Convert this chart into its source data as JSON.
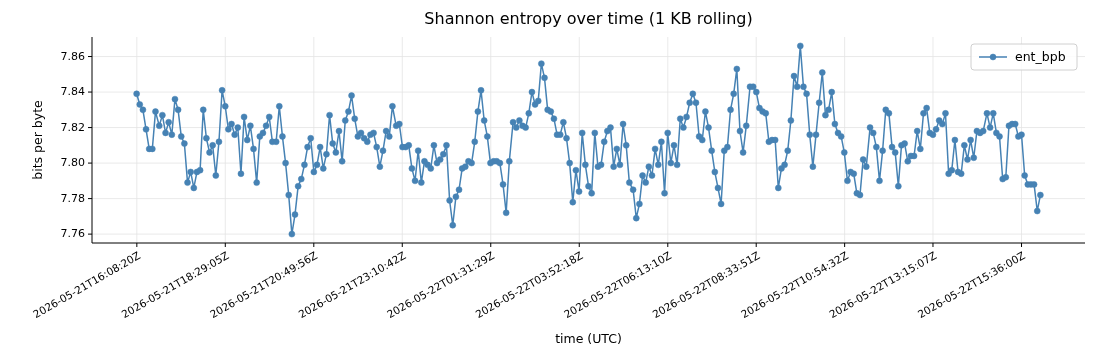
{
  "chart_data": {
    "type": "line",
    "title": "Shannon entropy over time (1 KB rolling)",
    "xlabel": "time (UTC)",
    "ylabel": "bits per byte",
    "x": [
      "2026-05-21T16:08",
      "2026-05-21T16:13",
      "2026-05-21T16:18",
      "2026-05-21T16:23",
      "2026-05-21T16:28",
      "2026-05-21T16:33",
      "2026-05-21T16:38",
      "2026-05-21T16:44",
      "2026-05-21T16:49",
      "2026-05-21T16:54",
      "2026-05-21T16:59",
      "2026-05-21T17:04",
      "2026-05-21T17:09",
      "2026-05-21T17:14",
      "2026-05-21T17:19",
      "2026-05-21T17:24",
      "2026-05-21T17:29",
      "2026-05-21T17:34",
      "2026-05-21T17:39",
      "2026-05-21T17:44",
      "2026-05-21T17:49",
      "2026-05-21T17:54",
      "2026-05-21T17:59",
      "2026-05-21T18:04",
      "2026-05-21T18:09",
      "2026-05-21T18:14",
      "2026-05-21T18:19",
      "2026-05-21T18:24",
      "2026-05-21T18:29",
      "2026-05-21T18:34",
      "2026-05-21T18:39",
      "2026-05-21T18:44",
      "2026-05-21T18:49",
      "2026-05-21T18:54",
      "2026-05-21T18:59",
      "2026-05-21T19:04",
      "2026-05-21T19:09",
      "2026-05-21T19:14",
      "2026-05-21T19:19",
      "2026-05-21T19:24",
      "2026-05-21T19:29",
      "2026-05-21T19:34",
      "2026-05-21T19:39",
      "2026-05-21T19:44",
      "2026-05-21T19:50",
      "2026-05-21T19:55",
      "2026-05-21T20:00",
      "2026-05-21T20:05",
      "2026-05-21T20:10",
      "2026-05-21T20:15",
      "2026-05-21T20:20",
      "2026-05-21T20:25",
      "2026-05-21T20:30",
      "2026-05-21T20:35",
      "2026-05-21T20:40",
      "2026-05-21T20:45",
      "2026-05-21T20:50",
      "2026-05-21T20:55",
      "2026-05-21T21:00",
      "2026-05-21T21:05",
      "2026-05-21T21:10",
      "2026-05-21T21:15",
      "2026-05-21T21:20",
      "2026-05-21T21:25",
      "2026-05-21T21:30",
      "2026-05-21T21:35",
      "2026-05-21T21:40",
      "2026-05-21T21:45",
      "2026-05-21T21:50",
      "2026-05-21T21:55",
      "2026-05-21T22:00",
      "2026-05-21T22:05",
      "2026-05-21T22:10",
      "2026-05-21T22:15",
      "2026-05-21T22:20",
      "2026-05-21T22:25",
      "2026-05-21T22:30",
      "2026-05-21T22:35",
      "2026-05-21T22:40",
      "2026-05-21T22:45",
      "2026-05-21T22:50",
      "2026-05-21T22:55",
      "2026-05-21T23:01",
      "2026-05-21T23:06",
      "2026-05-21T23:11",
      "2026-05-21T23:16",
      "2026-05-21T23:21",
      "2026-05-21T23:26",
      "2026-05-21T23:31",
      "2026-05-21T23:36",
      "2026-05-21T23:41",
      "2026-05-21T23:46",
      "2026-05-21T23:51",
      "2026-05-21T23:56",
      "2026-05-22T00:01",
      "2026-05-22T00:06",
      "2026-05-22T00:11",
      "2026-05-22T00:16",
      "2026-05-22T00:21",
      "2026-05-22T00:26",
      "2026-05-22T00:31",
      "2026-05-22T00:36",
      "2026-05-22T00:41",
      "2026-05-22T00:46",
      "2026-05-22T00:51",
      "2026-05-22T00:56",
      "2026-05-22T01:01",
      "2026-05-22T01:06",
      "2026-05-22T01:11",
      "2026-05-22T01:16",
      "2026-05-22T01:21",
      "2026-05-22T01:26",
      "2026-05-22T01:31",
      "2026-05-22T01:36",
      "2026-05-22T01:41",
      "2026-05-22T01:46",
      "2026-05-22T01:51",
      "2026-05-22T01:56",
      "2026-05-22T02:01",
      "2026-05-22T02:07",
      "2026-05-22T02:12",
      "2026-05-22T02:17",
      "2026-05-22T02:22",
      "2026-05-22T02:27",
      "2026-05-22T02:32",
      "2026-05-22T02:37",
      "2026-05-22T02:42",
      "2026-05-22T02:47",
      "2026-05-22T02:52",
      "2026-05-22T02:57",
      "2026-05-22T03:02",
      "2026-05-22T03:07",
      "2026-05-22T03:12",
      "2026-05-22T03:17",
      "2026-05-22T03:22",
      "2026-05-22T03:27",
      "2026-05-22T03:32",
      "2026-05-22T03:37",
      "2026-05-22T03:42",
      "2026-05-22T03:47",
      "2026-05-22T03:52",
      "2026-05-22T03:57",
      "2026-05-22T04:02",
      "2026-05-22T04:07",
      "2026-05-22T04:12",
      "2026-05-22T04:17",
      "2026-05-22T04:22",
      "2026-05-22T04:27",
      "2026-05-22T04:32",
      "2026-05-22T04:37",
      "2026-05-22T04:42",
      "2026-05-22T04:47",
      "2026-05-22T04:52",
      "2026-05-22T04:57",
      "2026-05-22T05:02",
      "2026-05-22T05:07",
      "2026-05-22T05:12",
      "2026-05-22T05:18",
      "2026-05-22T05:23",
      "2026-05-22T05:28",
      "2026-05-22T05:33",
      "2026-05-22T05:38",
      "2026-05-22T05:43",
      "2026-05-22T05:48",
      "2026-05-22T05:53",
      "2026-05-22T05:58",
      "2026-05-22T06:03",
      "2026-05-22T06:08",
      "2026-05-22T06:13",
      "2026-05-22T06:18",
      "2026-05-22T06:23",
      "2026-05-22T06:28",
      "2026-05-22T06:33",
      "2026-05-22T06:38",
      "2026-05-22T06:43",
      "2026-05-22T06:48",
      "2026-05-22T06:53",
      "2026-05-22T06:58",
      "2026-05-22T07:03",
      "2026-05-22T07:08",
      "2026-05-22T07:13",
      "2026-05-22T07:18",
      "2026-05-22T07:23",
      "2026-05-22T07:28",
      "2026-05-22T07:33",
      "2026-05-22T07:38",
      "2026-05-22T07:43",
      "2026-05-22T07:48",
      "2026-05-22T07:53",
      "2026-05-22T07:58",
      "2026-05-22T08:03",
      "2026-05-22T08:08",
      "2026-05-22T08:13",
      "2026-05-22T08:18",
      "2026-05-22T08:24",
      "2026-05-22T08:29",
      "2026-05-22T08:34",
      "2026-05-22T08:39",
      "2026-05-22T08:44",
      "2026-05-22T08:49",
      "2026-05-22T08:54",
      "2026-05-22T08:59",
      "2026-05-22T09:04",
      "2026-05-22T09:09",
      "2026-05-22T09:14",
      "2026-05-22T09:19",
      "2026-05-22T09:24",
      "2026-05-22T09:29",
      "2026-05-22T09:34",
      "2026-05-22T09:39",
      "2026-05-22T09:44",
      "2026-05-22T09:49",
      "2026-05-22T09:54",
      "2026-05-22T09:59",
      "2026-05-22T10:04",
      "2026-05-22T10:09",
      "2026-05-22T10:14",
      "2026-05-22T10:19",
      "2026-05-22T10:24",
      "2026-05-22T10:29",
      "2026-05-22T10:34",
      "2026-05-22T10:39",
      "2026-05-22T10:44",
      "2026-05-22T10:49",
      "2026-05-22T10:54",
      "2026-05-22T10:59",
      "2026-05-22T11:04",
      "2026-05-22T11:09",
      "2026-05-22T11:14",
      "2026-05-22T11:19",
      "2026-05-22T11:24",
      "2026-05-22T11:29",
      "2026-05-22T11:35",
      "2026-05-22T11:40",
      "2026-05-22T11:45",
      "2026-05-22T11:50",
      "2026-05-22T11:55",
      "2026-05-22T12:00",
      "2026-05-22T12:05",
      "2026-05-22T12:10",
      "2026-05-22T12:15",
      "2026-05-22T12:20",
      "2026-05-22T12:25",
      "2026-05-22T12:30",
      "2026-05-22T12:35",
      "2026-05-22T12:40",
      "2026-05-22T12:45",
      "2026-05-22T12:50",
      "2026-05-22T12:55",
      "2026-05-22T13:00",
      "2026-05-22T13:05",
      "2026-05-22T13:10",
      "2026-05-22T13:15",
      "2026-05-22T13:20",
      "2026-05-22T13:25",
      "2026-05-22T13:30",
      "2026-05-22T13:35",
      "2026-05-22T13:40",
      "2026-05-22T13:45",
      "2026-05-22T13:50",
      "2026-05-22T13:55",
      "2026-05-22T14:00",
      "2026-05-22T14:05",
      "2026-05-22T14:10",
      "2026-05-22T14:15",
      "2026-05-22T14:20",
      "2026-05-22T14:25",
      "2026-05-22T14:30",
      "2026-05-22T14:35",
      "2026-05-22T14:41",
      "2026-05-22T14:46",
      "2026-05-22T14:51",
      "2026-05-22T14:56",
      "2026-05-22T15:01",
      "2026-05-22T15:06",
      "2026-05-22T15:11",
      "2026-05-22T15:16",
      "2026-05-22T15:21",
      "2026-05-22T15:26",
      "2026-05-22T15:31",
      "2026-05-22T15:36",
      "2026-05-22T15:41",
      "2026-05-22T15:46",
      "2026-05-22T15:51",
      "2026-05-22T15:56",
      "2026-05-22T16:01",
      "2026-05-22T16:06"
    ],
    "series": [
      {
        "name": "ent_bpb",
        "color": "#4682b4",
        "values": [
          7.839,
          7.833,
          7.83,
          7.819,
          7.808,
          7.808,
          7.829,
          7.821,
          7.827,
          7.817,
          7.823,
          7.816,
          7.836,
          7.83,
          7.815,
          7.811,
          7.789,
          7.795,
          7.786,
          7.795,
          7.796,
          7.83,
          7.814,
          7.806,
          7.81,
          7.793,
          7.812,
          7.841,
          7.832,
          7.819,
          7.822,
          7.816,
          7.82,
          7.794,
          7.826,
          7.813,
          7.821,
          7.808,
          7.789,
          7.815,
          7.817,
          7.821,
          7.826,
          7.812,
          7.812,
          7.832,
          7.815,
          7.8,
          7.782,
          7.76,
          7.771,
          7.787,
          7.791,
          7.799,
          7.809,
          7.814,
          7.795,
          7.799,
          7.809,
          7.797,
          7.805,
          7.827,
          7.811,
          7.806,
          7.818,
          7.801,
          7.824,
          7.829,
          7.838,
          7.825,
          7.815,
          7.817,
          7.814,
          7.812,
          7.816,
          7.817,
          7.809,
          7.798,
          7.807,
          7.818,
          7.815,
          7.832,
          7.821,
          7.822,
          7.809,
          7.809,
          7.81,
          7.797,
          7.79,
          7.807,
          7.789,
          7.801,
          7.799,
          7.797,
          7.81,
          7.8,
          7.802,
          7.805,
          7.81,
          7.779,
          7.765,
          7.781,
          7.785,
          7.797,
          7.798,
          7.801,
          7.8,
          7.812,
          7.829,
          7.841,
          7.824,
          7.815,
          7.8,
          7.801,
          7.801,
          7.8,
          7.788,
          7.772,
          7.801,
          7.823,
          7.82,
          7.824,
          7.821,
          7.82,
          7.828,
          7.84,
          7.833,
          7.835,
          7.856,
          7.848,
          7.83,
          7.829,
          7.825,
          7.816,
          7.816,
          7.823,
          7.814,
          7.8,
          7.778,
          7.796,
          7.784,
          7.817,
          7.799,
          7.787,
          7.783,
          7.817,
          7.798,
          7.799,
          7.812,
          7.818,
          7.82,
          7.798,
          7.808,
          7.799,
          7.822,
          7.81,
          7.789,
          7.785,
          7.769,
          7.777,
          7.793,
          7.789,
          7.798,
          7.793,
          7.808,
          7.799,
          7.812,
          7.783,
          7.817,
          7.8,
          7.81,
          7.799,
          7.825,
          7.82,
          7.826,
          7.834,
          7.839,
          7.834,
          7.815,
          7.813,
          7.829,
          7.82,
          7.807,
          7.795,
          7.786,
          7.777,
          7.807,
          7.809,
          7.83,
          7.839,
          7.853,
          7.818,
          7.806,
          7.821,
          7.843,
          7.843,
          7.84,
          7.831,
          7.829,
          7.828,
          7.812,
          7.813,
          7.813,
          7.786,
          7.797,
          7.799,
          7.807,
          7.824,
          7.849,
          7.843,
          7.866,
          7.843,
          7.839,
          7.816,
          7.798,
          7.816,
          7.834,
          7.851,
          7.827,
          7.83,
          7.84,
          7.822,
          7.817,
          7.815,
          7.806,
          7.79,
          7.795,
          7.794,
          7.783,
          7.782,
          7.802,
          7.798,
          7.82,
          7.817,
          7.809,
          7.79,
          7.807,
          7.83,
          7.828,
          7.809,
          7.806,
          7.787,
          7.81,
          7.811,
          7.801,
          7.804,
          7.804,
          7.818,
          7.808,
          7.828,
          7.831,
          7.817,
          7.816,
          7.819,
          7.824,
          7.822,
          7.828,
          7.794,
          7.796,
          7.813,
          7.795,
          7.794,
          7.81,
          7.802,
          7.813,
          7.803,
          7.818,
          7.817,
          7.818,
          7.828,
          7.82,
          7.828,
          7.817,
          7.815,
          7.791,
          7.792,
          7.821,
          7.822,
          7.822,
          7.815,
          7.816,
          7.793,
          7.788,
          7.788,
          7.788,
          7.773,
          7.782
        ]
      }
    ],
    "xlim": [
      "2026-05-21T14:57",
      "2026-05-22T17:17"
    ],
    "ylim": [
      7.755,
      7.871
    ],
    "xticks": [
      {
        "value": "2026-05-21T16:08:20",
        "label": "2026-05-21T16:08:20Z"
      },
      {
        "value": "2026-05-21T18:29:05",
        "label": "2026-05-21T18:29:05Z"
      },
      {
        "value": "2026-05-21T20:49:56",
        "label": "2026-05-21T20:49:56Z"
      },
      {
        "value": "2026-05-21T23:10:42",
        "label": "2026-05-21T23:10:42Z"
      },
      {
        "value": "2026-05-22T01:31:29",
        "label": "2026-05-22T01:31:29Z"
      },
      {
        "value": "2026-05-22T03:52:18",
        "label": "2026-05-22T03:52:18Z"
      },
      {
        "value": "2026-05-22T06:13:10",
        "label": "2026-05-22T06:13:10Z"
      },
      {
        "value": "2026-05-22T08:33:51",
        "label": "2026-05-22T08:33:51Z"
      },
      {
        "value": "2026-05-22T10:54:32",
        "label": "2026-05-22T10:54:32Z"
      },
      {
        "value": "2026-05-22T13:15:07",
        "label": "2026-05-22T13:15:07Z"
      },
      {
        "value": "2026-05-22T15:36:00",
        "label": "2026-05-22T15:36:00Z"
      }
    ],
    "yticks": [
      7.76,
      7.78,
      {
        "value": 7.8,
        "label": "7.80"
      },
      7.82,
      7.84,
      7.86
    ],
    "grid": true,
    "legend": "top right",
    "marker": "circle",
    "line_style": "solid"
  }
}
